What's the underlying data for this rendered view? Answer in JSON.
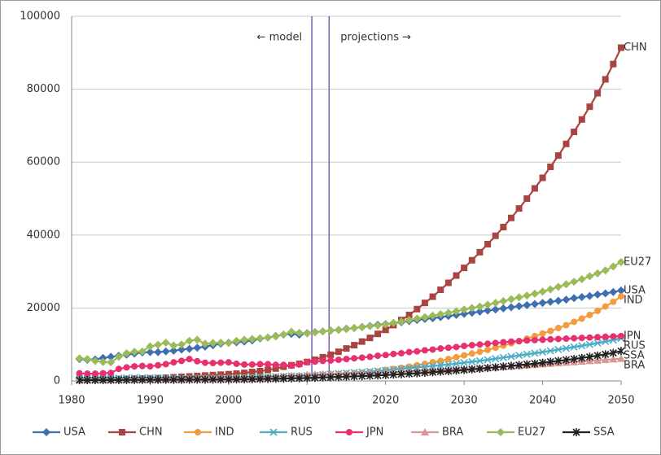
{
  "chart_data": {
    "type": "line",
    "annotations": [
      {
        "text": "← model",
        "x": 2010.6
      },
      {
        "text": "projections →",
        "x": 2012.8
      }
    ],
    "x": [
      1981,
      1982,
      1983,
      1984,
      1985,
      1986,
      1987,
      1988,
      1989,
      1990,
      1991,
      1992,
      1993,
      1994,
      1995,
      1996,
      1997,
      1998,
      1999,
      2000,
      2001,
      2002,
      2003,
      2004,
      2005,
      2006,
      2007,
      2008,
      2009,
      2010,
      2011,
      2012,
      2013,
      2014,
      2015,
      2016,
      2017,
      2018,
      2019,
      2020,
      2021,
      2022,
      2023,
      2024,
      2025,
      2026,
      2027,
      2028,
      2029,
      2030,
      2031,
      2032,
      2033,
      2034,
      2035,
      2036,
      2037,
      2038,
      2039,
      2040,
      2041,
      2042,
      2043,
      2044,
      2045,
      2046,
      2047,
      2048,
      2049,
      2050
    ],
    "xlim": [
      1980,
      2050
    ],
    "xticks": [
      1980,
      1990,
      2000,
      2010,
      2020,
      2030,
      2040,
      2050
    ],
    "ylim": [
      0,
      100000
    ],
    "yticks": [
      0,
      20000,
      40000,
      60000,
      80000,
      100000
    ],
    "grid": true,
    "series": [
      {
        "name": "USA",
        "color": "#3f6fb0",
        "marker": "diamond",
        "values": [
          6000,
          5800,
          5900,
          6300,
          6600,
          6900,
          7200,
          7500,
          7800,
          7900,
          7900,
          8100,
          8300,
          8600,
          8800,
          9100,
          9400,
          9800,
          10200,
          10500,
          10600,
          10800,
          11100,
          11600,
          11900,
          12300,
          12700,
          12900,
          12700,
          13100,
          13400,
          13600,
          13800,
          14000,
          14300,
          14500,
          14800,
          15100,
          15400,
          15600,
          15900,
          16100,
          16400,
          16700,
          17000,
          17200,
          17500,
          17800,
          18100,
          18400,
          18700,
          19000,
          19300,
          19600,
          19900,
          20200,
          20500,
          20800,
          21100,
          21400,
          21700,
          22000,
          22300,
          22700,
          23000,
          23300,
          23700,
          24000,
          24400,
          24800
        ]
      },
      {
        "name": "CHN",
        "color": "#a94442",
        "marker": "square",
        "values": [
          300,
          330,
          370,
          420,
          480,
          520,
          580,
          650,
          680,
          710,
          780,
          880,
          1000,
          1120,
          1240,
          1360,
          1480,
          1600,
          1720,
          1850,
          2000,
          2200,
          2450,
          2700,
          3000,
          3400,
          3900,
          4300,
          4700,
          5200,
          5800,
          6500,
          7200,
          8000,
          8900,
          9800,
          10800,
          11800,
          12900,
          14000,
          15300,
          16700,
          18100,
          19700,
          21400,
          23100,
          25000,
          26900,
          28900,
          31000,
          33100,
          35300,
          37500,
          39800,
          42200,
          44700,
          47300,
          50000,
          52800,
          55700,
          58700,
          61800,
          65000,
          68300,
          71700,
          75200,
          78900,
          82700,
          86900,
          91400
        ]
      },
      {
        "name": "IND",
        "color": "#f39b3d",
        "marker": "circle",
        "values": [
          200,
          250,
          280,
          300,
          330,
          360,
          390,
          420,
          450,
          480,
          500,
          520,
          550,
          580,
          620,
          660,
          700,
          740,
          780,
          820,
          860,
          900,
          950,
          1000,
          1060,
          1120,
          1190,
          1260,
          1340,
          1420,
          1500,
          1600,
          1700,
          1820,
          1950,
          2100,
          2250,
          2420,
          2600,
          3000,
          3300,
          3600,
          3900,
          4300,
          4700,
          5100,
          5500,
          6000,
          6500,
          7000,
          7500,
          8000,
          8500,
          9100,
          9700,
          10300,
          10900,
          11600,
          12300,
          13000,
          13700,
          14500,
          15300,
          16200,
          17100,
          18100,
          19200,
          20400,
          21700,
          23200
        ]
      },
      {
        "name": "RUS",
        "color": "#4bacc6",
        "marker": "cross",
        "values": [
          700,
          720,
          740,
          760,
          780,
          800,
          820,
          840,
          860,
          880,
          850,
          800,
          750,
          700,
          680,
          660,
          650,
          640,
          660,
          700,
          750,
          800,
          880,
          960,
          1050,
          1150,
          1250,
          1350,
          1300,
          1400,
          1550,
          1700,
          1850,
          2000,
          2150,
          2300,
          2450,
          2600,
          2750,
          2900,
          3100,
          3300,
          3500,
          3700,
          3900,
          4100,
          4300,
          4500,
          4750,
          5000,
          5250,
          5500,
          5800,
          6100,
          6400,
          6700,
          7000,
          7300,
          7600,
          7900,
          8250,
          8600,
          8950,
          9300,
          9650,
          10000,
          10400,
          10800,
          11200,
          11700
        ]
      },
      {
        "name": "JPN",
        "color": "#e8306e",
        "marker": "circle",
        "values": [
          2100,
          2000,
          2000,
          2100,
          2200,
          3300,
          3700,
          4000,
          4100,
          4000,
          4300,
          4600,
          5100,
          5500,
          6000,
          5400,
          5000,
          4900,
          5000,
          5100,
          4700,
          4500,
          4500,
          4600,
          4600,
          4400,
          4400,
          4200,
          4500,
          5100,
          5300,
          5500,
          5600,
          5800,
          6000,
          6200,
          6400,
          6600,
          6900,
          7100,
          7400,
          7600,
          7900,
          8100,
          8400,
          8600,
          8900,
          9100,
          9300,
          9600,
          9800,
          10000,
          10200,
          10400,
          10600,
          10800,
          10900,
          11100,
          11200,
          11300,
          11400,
          11500,
          11600,
          11700,
          11800,
          11900,
          12000,
          12100,
          12200,
          12300
        ]
      },
      {
        "name": "BRA",
        "color": "#d99694",
        "marker": "triangle",
        "values": [
          300,
          320,
          330,
          340,
          360,
          380,
          400,
          420,
          440,
          460,
          480,
          500,
          550,
          600,
          700,
          750,
          800,
          800,
          750,
          700,
          650,
          600,
          650,
          700,
          850,
          1000,
          1200,
          1400,
          1400,
          1700,
          1800,
          1900,
          1950,
          2000,
          2050,
          2100,
          2150,
          2200,
          2250,
          2300,
          2400,
          2500,
          2600,
          2700,
          2800,
          2900,
          3000,
          3100,
          3200,
          3300,
          3400,
          3500,
          3600,
          3700,
          3850,
          4000,
          4150,
          4300,
          4450,
          4600,
          4750,
          4900,
          5050,
          5200,
          5350,
          5500,
          5650,
          5800,
          5950,
          6100
        ]
      },
      {
        "name": "EU27",
        "color": "#9bbb59",
        "marker": "diamond",
        "values": [
          6200,
          6000,
          5500,
          5200,
          5100,
          6600,
          7600,
          8000,
          8100,
          9500,
          9900,
          10500,
          9700,
          10000,
          11000,
          11300,
          10200,
          10400,
          10500,
          10400,
          11000,
          11300,
          11500,
          11700,
          11900,
          12200,
          12700,
          13500,
          13200,
          13000,
          13300,
          13600,
          13800,
          14000,
          14200,
          14500,
          14700,
          15000,
          15200,
          15500,
          15900,
          16300,
          16700,
          17100,
          17500,
          17900,
          18300,
          18700,
          19100,
          19600,
          20000,
          20400,
          20900,
          21400,
          21900,
          22400,
          22900,
          23400,
          23900,
          24500,
          25100,
          25800,
          26500,
          27200,
          27900,
          28700,
          29500,
          30300,
          31400,
          32600
        ]
      },
      {
        "name": "SSA",
        "color": "#222222",
        "marker": "star",
        "values": [
          200,
          210,
          220,
          230,
          240,
          250,
          260,
          270,
          280,
          290,
          300,
          310,
          320,
          330,
          340,
          350,
          360,
          370,
          380,
          400,
          420,
          450,
          480,
          520,
          560,
          600,
          650,
          700,
          750,
          800,
          870,
          940,
          1010,
          1080,
          1160,
          1240,
          1320,
          1400,
          1500,
          1600,
          1720,
          1850,
          1980,
          2110,
          2250,
          2400,
          2550,
          2700,
          2850,
          3000,
          3180,
          3360,
          3550,
          3750,
          3950,
          4150,
          4350,
          4550,
          4750,
          5000,
          5250,
          5500,
          5750,
          6000,
          6300,
          6600,
          6950,
          7300,
          7700,
          8200
        ]
      }
    ],
    "vline_color": "#7a5cb0"
  }
}
